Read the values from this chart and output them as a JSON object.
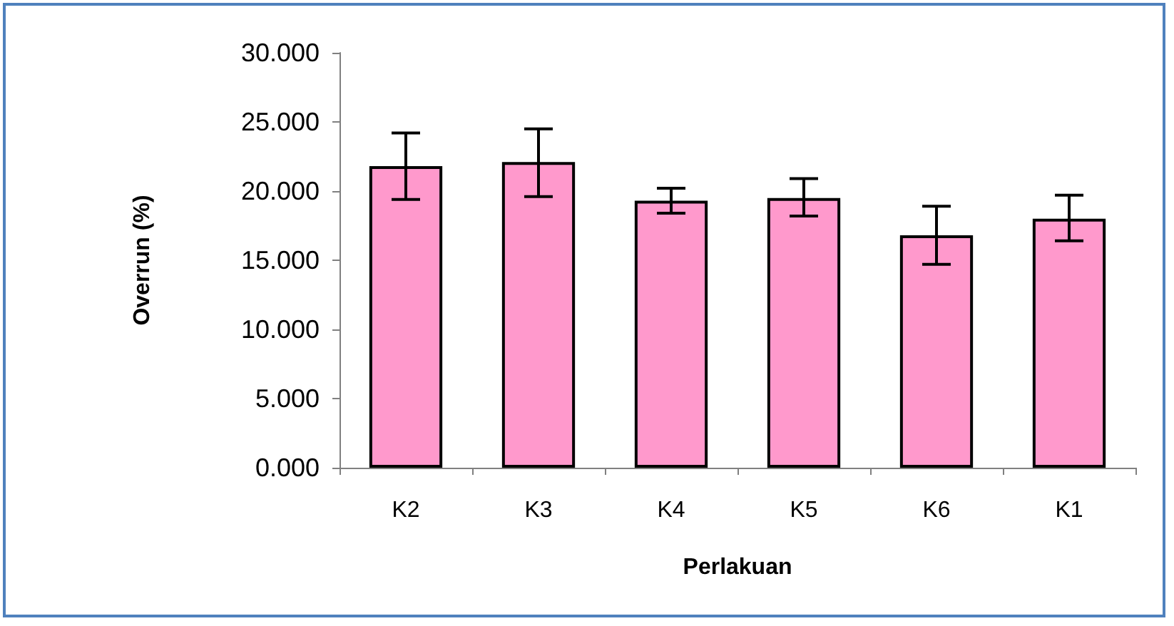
{
  "chart_data": {
    "type": "bar",
    "xlabel": "Perlakuan",
    "ylabel": "Overrun (%)",
    "categories": [
      "K2",
      "K3",
      "K4",
      "K5",
      "K6",
      "K1"
    ],
    "values": [
      21.8,
      22.1,
      19.3,
      19.5,
      16.8,
      18.0
    ],
    "errors": [
      [
        19.4,
        24.2
      ],
      [
        19.6,
        24.5
      ],
      [
        18.4,
        20.2
      ],
      [
        18.2,
        20.9
      ],
      [
        14.7,
        18.9
      ],
      [
        16.4,
        19.7
      ]
    ],
    "color": "#ff99cc",
    "ylim": [
      0,
      30
    ],
    "yticks": [
      {
        "value": 0,
        "label": "0.000"
      },
      {
        "value": 5,
        "label": "5.000"
      },
      {
        "value": 10,
        "label": "10.000"
      },
      {
        "value": 15,
        "label": "15.000"
      },
      {
        "value": 20,
        "label": "20.000"
      },
      {
        "value": 25,
        "label": "25.000"
      },
      {
        "value": 30,
        "label": "30.000"
      }
    ]
  }
}
